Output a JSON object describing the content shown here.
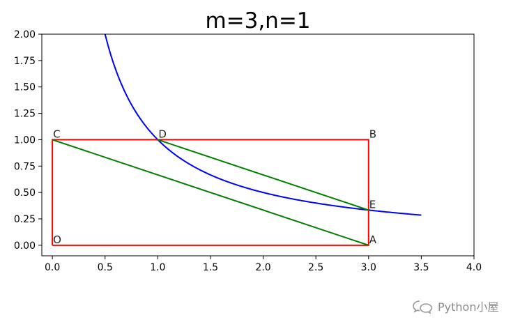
{
  "chart_data": {
    "type": "line",
    "title": "m=3,n=1",
    "xlim": [
      -0.1,
      4.0
    ],
    "ylim": [
      -0.1,
      2.0
    ],
    "xticks": [
      "0.0",
      "0.5",
      "1.0",
      "1.5",
      "2.0",
      "2.5",
      "3.0",
      "3.5",
      "4.0"
    ],
    "yticks": [
      "0.00",
      "0.25",
      "0.50",
      "0.75",
      "1.00",
      "1.25",
      "1.50",
      "1.75",
      "2.00"
    ],
    "grid": false,
    "series": [
      {
        "color": "#0000ff",
        "kind": "curve",
        "function": "y = 1/x",
        "x_range": [
          0.5,
          3.5
        ]
      },
      {
        "color": "#ff0000",
        "kind": "polygon",
        "x": [
          0,
          3,
          3,
          0,
          0
        ],
        "y": [
          0,
          0,
          1,
          1,
          0
        ]
      },
      {
        "color": "#008000",
        "kind": "segment",
        "x": [
          0,
          3
        ],
        "y": [
          1,
          0
        ]
      },
      {
        "color": "#008000",
        "kind": "segment",
        "x": [
          1,
          3
        ],
        "y": [
          1,
          0.3333
        ]
      }
    ],
    "points": [
      {
        "label": "O",
        "x": 0,
        "y": 0
      },
      {
        "label": "A",
        "x": 3,
        "y": 0
      },
      {
        "label": "B",
        "x": 3,
        "y": 1
      },
      {
        "label": "C",
        "x": 0,
        "y": 1
      },
      {
        "label": "D",
        "x": 1,
        "y": 1
      },
      {
        "label": "E",
        "x": 3,
        "y": 0.3333
      }
    ]
  },
  "watermark": {
    "text": "Python小屋"
  }
}
